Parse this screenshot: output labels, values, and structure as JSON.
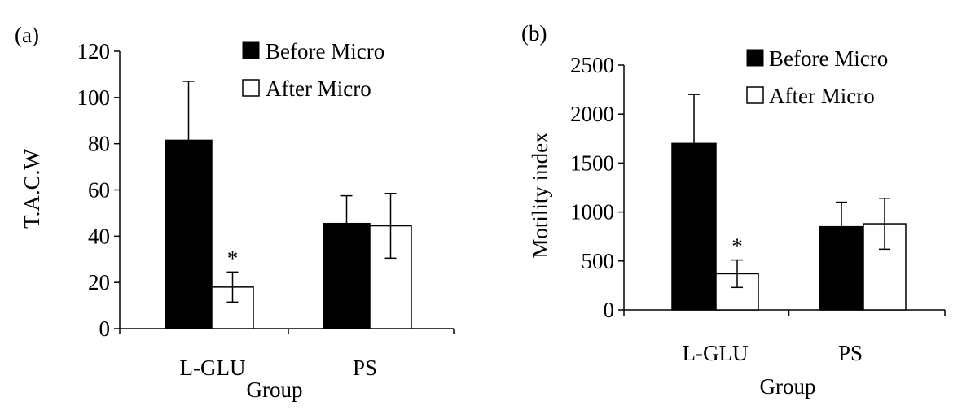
{
  "chart_data": [
    {
      "type": "bar",
      "panel_label": "(a)",
      "categories": [
        "L-GLU",
        "PS"
      ],
      "series": [
        {
          "name": "Before Micro",
          "color": "#000000",
          "values": [
            81.5,
            45.5
          ],
          "errors": [
            25.5,
            12
          ]
        },
        {
          "name": "After Micro",
          "color": "#ffffff",
          "values": [
            18,
            44.5
          ],
          "errors": [
            6.5,
            14
          ]
        }
      ],
      "annotations": [
        {
          "text": "*",
          "category": "L-GLU",
          "series": "After Micro"
        }
      ],
      "xlabel": "Group",
      "ylabel": "T.A.C.W",
      "ylim": [
        0,
        120
      ],
      "yticks": [
        "0",
        "20",
        "40",
        "60",
        "80",
        "100",
        "120"
      ],
      "grid": false,
      "legend": "top-right"
    },
    {
      "type": "bar",
      "panel_label": "(b)",
      "categories": [
        "L-GLU",
        "PS"
      ],
      "series": [
        {
          "name": "Before Micro",
          "color": "#000000",
          "values": [
            1700,
            850
          ],
          "errors": [
            500,
            250
          ]
        },
        {
          "name": "After Micro",
          "color": "#ffffff",
          "values": [
            370,
            880
          ],
          "errors": [
            140,
            260
          ]
        }
      ],
      "annotations": [
        {
          "text": "*",
          "category": "L-GLU",
          "series": "After Micro"
        }
      ],
      "xlabel": "Group",
      "ylabel": "Motility index",
      "ylim": [
        0,
        2500
      ],
      "yticks": [
        "0",
        "500",
        "1000",
        "1500",
        "2000",
        "2500"
      ],
      "grid": false,
      "legend": "top-right"
    }
  ]
}
